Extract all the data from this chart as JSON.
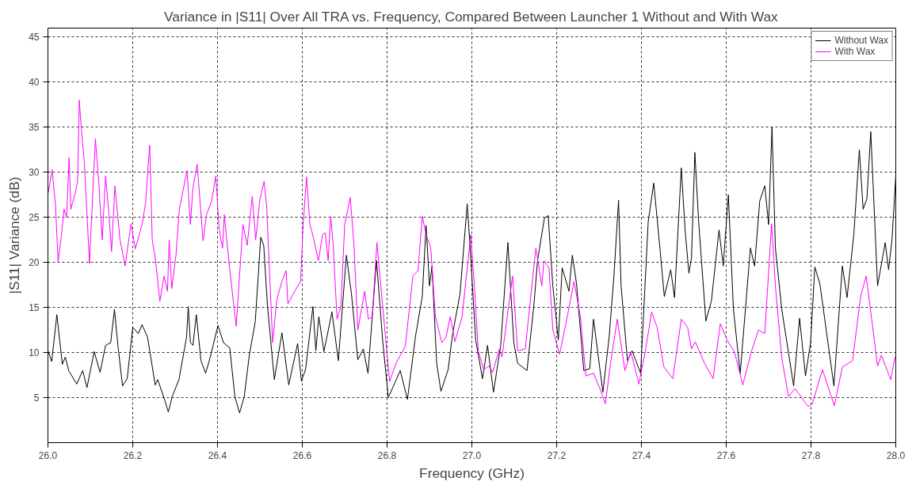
{
  "chart_data": {
    "type": "line",
    "title": "Variance in |S11| Over All TRA vs. Frequency, Compared Between Launcher 1 Without and With Wax",
    "xlabel": "Frequency (GHz)",
    "ylabel": "|S11| Variance (dB)",
    "xlim": [
      26,
      28
    ],
    "ylim": [
      0,
      46
    ],
    "xticks": [
      {
        "value": 26,
        "label": "26.0"
      },
      26.2,
      26.4,
      26.6,
      26.8,
      {
        "value": 27,
        "label": "27.0"
      },
      27.2,
      27.4,
      27.6,
      27.8,
      {
        "value": 28,
        "label": "28.0"
      }
    ],
    "yticks": [
      5,
      10,
      15,
      20,
      25,
      30,
      35,
      40,
      45
    ],
    "grid": true,
    "legend": "top right",
    "line_style": "solid",
    "marker": "none",
    "series": [
      {
        "name": "Without Wax",
        "color": "#000000",
        "x": [
          26.0,
          26.009,
          26.021,
          26.034,
          26.041,
          26.049,
          26.068,
          26.082,
          26.092,
          26.109,
          26.123,
          26.136,
          26.148,
          26.157,
          26.165,
          26.176,
          26.187,
          26.2,
          26.213,
          26.222,
          26.235,
          26.253,
          26.259,
          26.275,
          26.284,
          26.293,
          26.309,
          26.327,
          26.331,
          26.336,
          26.342,
          26.35,
          26.361,
          26.372,
          26.383,
          26.401,
          26.414,
          26.429,
          26.441,
          26.452,
          26.463,
          26.475,
          26.489,
          26.502,
          26.509,
          26.518,
          26.534,
          26.552,
          26.568,
          26.589,
          26.598,
          26.608,
          26.625,
          26.632,
          26.639,
          26.651,
          26.67,
          26.685,
          26.704,
          26.716,
          26.731,
          26.744,
          26.755,
          26.775,
          26.79,
          26.803,
          26.831,
          26.848,
          26.867,
          26.883,
          26.892,
          26.9,
          26.906,
          26.917,
          26.927,
          26.944,
          26.954,
          26.972,
          26.989,
          26.996,
          27.009,
          27.025,
          27.037,
          27.051,
          27.068,
          27.085,
          27.099,
          27.108,
          27.13,
          27.146,
          27.155,
          27.171,
          27.18,
          27.191,
          27.204,
          27.213,
          27.229,
          27.237,
          27.247,
          27.264,
          27.278,
          27.287,
          27.309,
          27.324,
          27.335,
          27.346,
          27.352,
          27.367,
          27.378,
          27.398,
          27.416,
          27.429,
          27.444,
          27.454,
          27.469,
          27.478,
          27.494,
          27.503,
          27.512,
          27.518,
          27.526,
          27.535,
          27.552,
          27.565,
          27.583,
          27.593,
          27.605,
          27.617,
          27.633,
          27.657,
          27.667,
          27.679,
          27.691,
          27.7,
          27.708,
          27.716,
          27.731,
          27.759,
          27.773,
          27.787,
          27.799,
          27.809,
          27.821,
          27.854,
          27.874,
          27.885,
          27.901,
          27.914,
          27.923,
          27.932,
          27.941,
          27.957,
          27.975,
          27.983,
          27.991,
          28.0
        ],
        "values": [
          10.2,
          9.0,
          14.2,
          8.7,
          9.5,
          8.0,
          6.5,
          8.0,
          6.1,
          10.1,
          7.8,
          10.8,
          11.1,
          14.8,
          10.8,
          6.3,
          7.1,
          12.8,
          12.1,
          13.1,
          11.7,
          6.4,
          7.0,
          4.8,
          3.4,
          5.1,
          7.0,
          11.7,
          15.1,
          11.1,
          10.8,
          14.2,
          9.1,
          7.7,
          9.5,
          13.0,
          11.1,
          10.5,
          5.1,
          3.3,
          5.1,
          9.7,
          13.4,
          22.8,
          21.9,
          15.1,
          7.0,
          12.2,
          6.4,
          11.0,
          6.8,
          8.2,
          15.1,
          10.2,
          14.0,
          10.1,
          14.5,
          9.1,
          20.8,
          16.5,
          9.2,
          10.4,
          7.7,
          20.2,
          11.1,
          5.0,
          8.0,
          4.8,
          11.8,
          16.2,
          24.1,
          17.4,
          19.6,
          8.8,
          5.7,
          8.1,
          11.9,
          16.5,
          26.5,
          21.6,
          11.4,
          7.1,
          10.8,
          5.6,
          10.8,
          22.2,
          11.1,
          8.8,
          8.0,
          15.1,
          20.2,
          24.9,
          25.2,
          17.4,
          11.4,
          19.4,
          16.8,
          20.8,
          17.6,
          8.0,
          8.2,
          13.7,
          5.6,
          11.8,
          18.4,
          26.9,
          17.4,
          9.1,
          10.2,
          7.7,
          24.5,
          28.8,
          21.4,
          16.2,
          19.2,
          16.1,
          30.5,
          23.6,
          18.8,
          20.5,
          32.2,
          24.5,
          13.5,
          15.7,
          23.6,
          19.6,
          27.5,
          14.8,
          7.7,
          21.6,
          19.6,
          26.8,
          28.5,
          24.2,
          35.0,
          21.6,
          14.8,
          6.3,
          13.8,
          7.4,
          11.1,
          19.5,
          17.6,
          6.3,
          19.6,
          16.1,
          23.1,
          32.5,
          25.9,
          27.1,
          34.5,
          17.4,
          22.2,
          19.2,
          22.5,
          29.6
        ]
      },
      {
        "name": "With Wax",
        "color": "#ff00ff",
        "x": [
          26.0,
          26.01,
          26.018,
          26.024,
          26.032,
          26.038,
          26.044,
          26.05,
          26.054,
          26.064,
          26.07,
          26.074,
          26.078,
          26.086,
          26.098,
          26.106,
          26.112,
          26.12,
          26.128,
          26.136,
          26.144,
          26.15,
          26.158,
          26.17,
          26.182,
          26.196,
          26.206,
          26.222,
          26.23,
          26.24,
          26.246,
          26.254,
          26.264,
          26.274,
          26.282,
          26.286,
          26.292,
          26.302,
          26.31,
          26.328,
          26.336,
          26.342,
          26.352,
          26.366,
          26.374,
          26.386,
          26.396,
          26.404,
          26.412,
          26.416,
          26.428,
          26.444,
          26.46,
          26.47,
          26.482,
          26.49,
          26.5,
          26.51,
          26.516,
          26.53,
          26.54,
          26.552,
          26.562,
          26.566,
          26.582,
          26.596,
          26.602,
          26.61,
          26.618,
          26.626,
          26.638,
          26.648,
          26.654,
          26.661,
          26.667,
          26.673,
          26.682,
          26.691,
          26.7,
          26.713,
          26.722,
          26.731,
          26.747,
          26.756,
          26.765,
          26.776,
          26.787,
          26.8,
          26.806,
          26.821,
          26.843,
          26.861,
          26.873,
          26.883,
          26.892,
          26.903,
          26.914,
          26.929,
          26.939,
          26.949,
          26.96,
          26.977,
          26.991,
          26.997,
          27.006,
          27.015,
          27.028,
          27.04,
          27.049,
          27.065,
          27.071,
          27.096,
          27.108,
          27.126,
          27.151,
          27.165,
          27.17,
          27.182,
          27.191,
          27.207,
          27.226,
          27.241,
          27.256,
          27.269,
          27.287,
          27.302,
          27.315,
          27.327,
          27.343,
          27.361,
          27.375,
          27.394,
          27.409,
          27.424,
          27.437,
          27.453,
          27.474,
          27.494,
          27.509,
          27.518,
          27.527,
          27.549,
          27.569,
          27.586,
          27.602,
          27.62,
          27.639,
          27.66,
          27.676,
          27.691,
          27.707,
          27.716,
          27.731,
          27.747,
          27.762,
          27.778,
          27.793,
          27.803,
          27.827,
          27.855,
          27.874,
          27.898,
          27.917,
          27.93,
          27.941,
          27.957,
          27.966,
          27.988,
          27.998
        ],
        "values": [
          27.6,
          30.3,
          26.2,
          20.1,
          23.1,
          25.9,
          25.0,
          31.6,
          25.9,
          27.6,
          29.0,
          38.0,
          35.3,
          31.0,
          19.9,
          27.9,
          33.7,
          28.8,
          22.5,
          29.6,
          25.3,
          21.2,
          28.5,
          22.5,
          19.6,
          24.3,
          21.5,
          24.2,
          26.5,
          33.0,
          22.5,
          20.2,
          15.7,
          18.5,
          16.8,
          22.5,
          17.1,
          20.8,
          25.9,
          30.2,
          24.2,
          28.2,
          30.9,
          22.4,
          25.3,
          26.8,
          29.6,
          23.6,
          21.6,
          25.3,
          19.6,
          12.9,
          24.2,
          21.9,
          27.3,
          22.5,
          27.0,
          29.0,
          26.2,
          11.1,
          15.9,
          17.9,
          19.1,
          15.4,
          16.8,
          17.9,
          24.2,
          29.5,
          24.2,
          22.8,
          20.2,
          23.1,
          23.3,
          20.2,
          25.1,
          21.9,
          13.7,
          15.1,
          24.2,
          27.2,
          21.9,
          12.5,
          16.8,
          13.7,
          14.0,
          22.2,
          16.5,
          9.8,
          6.8,
          8.8,
          10.7,
          18.5,
          19.1,
          25.1,
          23.1,
          21.6,
          14.0,
          11.1,
          11.7,
          14.0,
          11.2,
          14.0,
          20.2,
          23.1,
          17.4,
          10.2,
          8.1,
          8.5,
          7.8,
          10.4,
          9.5,
          18.5,
          10.2,
          10.4,
          21.6,
          17.4,
          20.2,
          19.4,
          12.5,
          9.8,
          14.2,
          17.9,
          14.0,
          7.4,
          7.7,
          6.0,
          4.3,
          8.8,
          13.7,
          8.0,
          10.1,
          6.5,
          10.1,
          14.5,
          12.8,
          8.4,
          7.1,
          13.7,
          12.8,
          10.4,
          11.2,
          8.8,
          7.1,
          13.2,
          11.4,
          10.0,
          6.4,
          10.2,
          12.5,
          12.1,
          24.3,
          17.4,
          9.4,
          5.1,
          6.0,
          5.0,
          4.0,
          4.3,
          8.1,
          4.1,
          8.4,
          9.1,
          16.2,
          18.5,
          14.5,
          8.5,
          9.7,
          7.0,
          9.5
        ]
      }
    ]
  }
}
